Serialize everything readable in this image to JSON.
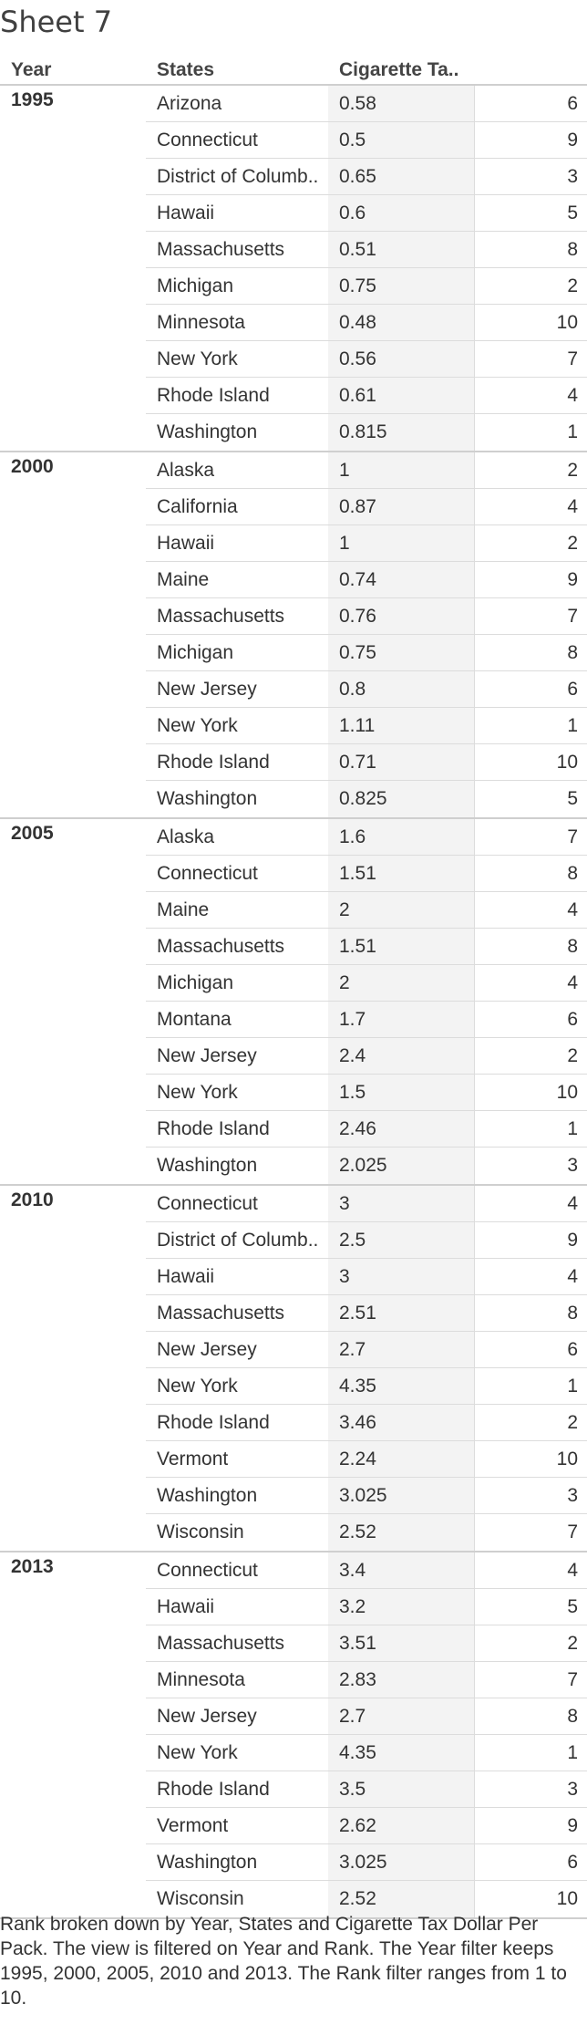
{
  "sheet_title": "Sheet 7",
  "headers": {
    "year": "Year",
    "states": "States",
    "tax": "Cigarette Ta.."
  },
  "groups": [
    {
      "year": "1995",
      "rows": [
        {
          "state": "Arizona",
          "tax": "0.58",
          "rank": "6"
        },
        {
          "state": "Connecticut",
          "tax": "0.5",
          "rank": "9"
        },
        {
          "state": "District of Columb..",
          "tax": "0.65",
          "rank": "3"
        },
        {
          "state": "Hawaii",
          "tax": "0.6",
          "rank": "5"
        },
        {
          "state": "Massachusetts",
          "tax": "0.51",
          "rank": "8"
        },
        {
          "state": "Michigan",
          "tax": "0.75",
          "rank": "2"
        },
        {
          "state": "Minnesota",
          "tax": "0.48",
          "rank": "10"
        },
        {
          "state": "New York",
          "tax": "0.56",
          "rank": "7"
        },
        {
          "state": "Rhode Island",
          "tax": "0.61",
          "rank": "4"
        },
        {
          "state": "Washington",
          "tax": "0.815",
          "rank": "1"
        }
      ]
    },
    {
      "year": "2000",
      "rows": [
        {
          "state": "Alaska",
          "tax": "1",
          "rank": "2"
        },
        {
          "state": "California",
          "tax": "0.87",
          "rank": "4"
        },
        {
          "state": "Hawaii",
          "tax": "1",
          "rank": "2"
        },
        {
          "state": "Maine",
          "tax": "0.74",
          "rank": "9"
        },
        {
          "state": "Massachusetts",
          "tax": "0.76",
          "rank": "7"
        },
        {
          "state": "Michigan",
          "tax": "0.75",
          "rank": "8"
        },
        {
          "state": "New Jersey",
          "tax": "0.8",
          "rank": "6"
        },
        {
          "state": "New York",
          "tax": "1.11",
          "rank": "1"
        },
        {
          "state": "Rhode Island",
          "tax": "0.71",
          "rank": "10"
        },
        {
          "state": "Washington",
          "tax": "0.825",
          "rank": "5"
        }
      ]
    },
    {
      "year": "2005",
      "rows": [
        {
          "state": "Alaska",
          "tax": "1.6",
          "rank": "7"
        },
        {
          "state": "Connecticut",
          "tax": "1.51",
          "rank": "8"
        },
        {
          "state": "Maine",
          "tax": "2",
          "rank": "4"
        },
        {
          "state": "Massachusetts",
          "tax": "1.51",
          "rank": "8"
        },
        {
          "state": "Michigan",
          "tax": "2",
          "rank": "4"
        },
        {
          "state": "Montana",
          "tax": "1.7",
          "rank": "6"
        },
        {
          "state": "New Jersey",
          "tax": "2.4",
          "rank": "2"
        },
        {
          "state": "New York",
          "tax": "1.5",
          "rank": "10"
        },
        {
          "state": "Rhode Island",
          "tax": "2.46",
          "rank": "1"
        },
        {
          "state": "Washington",
          "tax": "2.025",
          "rank": "3"
        }
      ]
    },
    {
      "year": "2010",
      "rows": [
        {
          "state": "Connecticut",
          "tax": "3",
          "rank": "4"
        },
        {
          "state": "District of Columb..",
          "tax": "2.5",
          "rank": "9"
        },
        {
          "state": "Hawaii",
          "tax": "3",
          "rank": "4"
        },
        {
          "state": "Massachusetts",
          "tax": "2.51",
          "rank": "8"
        },
        {
          "state": "New Jersey",
          "tax": "2.7",
          "rank": "6"
        },
        {
          "state": "New York",
          "tax": "4.35",
          "rank": "1"
        },
        {
          "state": "Rhode Island",
          "tax": "3.46",
          "rank": "2"
        },
        {
          "state": "Vermont",
          "tax": "2.24",
          "rank": "10"
        },
        {
          "state": "Washington",
          "tax": "3.025",
          "rank": "3"
        },
        {
          "state": "Wisconsin",
          "tax": "2.52",
          "rank": "7"
        }
      ]
    },
    {
      "year": "2013",
      "rows": [
        {
          "state": "Connecticut",
          "tax": "3.4",
          "rank": "4"
        },
        {
          "state": "Hawaii",
          "tax": "3.2",
          "rank": "5"
        },
        {
          "state": "Massachusetts",
          "tax": "3.51",
          "rank": "2"
        },
        {
          "state": "Minnesota",
          "tax": "2.83",
          "rank": "7"
        },
        {
          "state": "New Jersey",
          "tax": "2.7",
          "rank": "8"
        },
        {
          "state": "New York",
          "tax": "4.35",
          "rank": "1"
        },
        {
          "state": "Rhode Island",
          "tax": "3.5",
          "rank": "3"
        },
        {
          "state": "Vermont",
          "tax": "2.62",
          "rank": "9"
        },
        {
          "state": "Washington",
          "tax": "3.025",
          "rank": "6"
        },
        {
          "state": "Wisconsin",
          "tax": "2.52",
          "rank": "10"
        }
      ]
    }
  ],
  "footer": "Rank broken down by Year, States and Cigarette Tax Dollar Per Pack. The view is filtered on Year and Rank. The Year filter keeps 1995, 2000, 2005, 2010 and 2013. The Rank filter ranges from 1 to 10."
}
